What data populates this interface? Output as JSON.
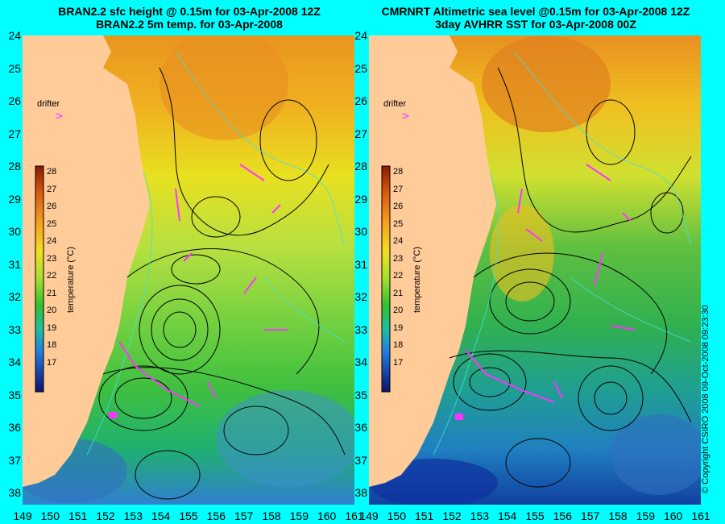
{
  "titles": {
    "left_line1": "BRAN2.2 sfc height @ 0.15m for 03-Apr-2008 12Z",
    "left_line2": "BRAN2.2 5m temp. for 03-Apr-2008",
    "right_line1": "CMRNRT Altimetric sea level  @0.15m  for 03-Apr-2008 12Z",
    "right_line2": "3day AVHRR SST for 03-Apr-2008 00Z"
  },
  "lat_ticks": [
    "24",
    "25",
    "26",
    "27",
    "28",
    "29",
    "30",
    "31",
    "32",
    "33",
    "34",
    "35",
    "36",
    "37",
    "38"
  ],
  "lon_ticks": [
    "149",
    "150",
    "151",
    "152",
    "153",
    "154",
    "155",
    "156",
    "157",
    "158",
    "159",
    "160",
    "161"
  ],
  "colorbar": {
    "ticks": [
      "28",
      "27",
      "26",
      "25",
      "24",
      "23",
      "22",
      "21",
      "20",
      "19",
      "18",
      "17"
    ],
    "label": "temperature (°C)"
  },
  "legend": {
    "drifter": "drifter"
  },
  "copyright": "© Copyright CSIRO 2008    09-Oct-2008 09:23:30",
  "colors": {
    "background": "#00ffff",
    "land": "#ffcc99",
    "drifter": "#ff33ff"
  }
}
